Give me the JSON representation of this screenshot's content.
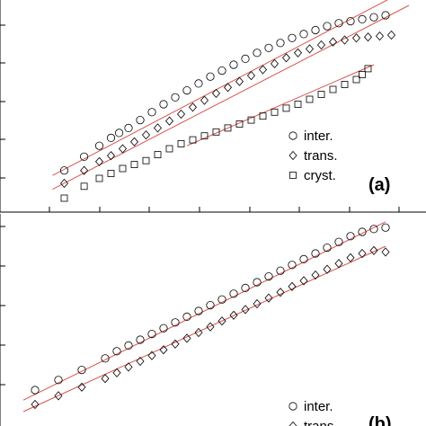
{
  "chart_data": [
    {
      "type": "scatter",
      "panel_label": "(a)",
      "legend_position": "lower-right",
      "series": [
        {
          "name": "inter.",
          "marker": "circle",
          "points": [
            [
              0.55,
              0.33
            ],
            [
              0.72,
              0.47
            ],
            [
              0.85,
              0.58
            ],
            [
              0.95,
              0.66
            ],
            [
              1.02,
              0.71
            ],
            [
              1.1,
              0.76
            ],
            [
              1.2,
              0.84
            ],
            [
              1.3,
              0.92
            ],
            [
              1.4,
              1.0
            ],
            [
              1.5,
              1.07
            ],
            [
              1.6,
              1.14
            ],
            [
              1.7,
              1.21
            ],
            [
              1.8,
              1.28
            ],
            [
              1.9,
              1.34
            ],
            [
              2.0,
              1.4
            ],
            [
              2.1,
              1.46
            ],
            [
              2.2,
              1.52
            ],
            [
              2.3,
              1.57
            ],
            [
              2.4,
              1.62
            ],
            [
              2.5,
              1.67
            ],
            [
              2.6,
              1.71
            ],
            [
              2.7,
              1.75
            ],
            [
              2.8,
              1.79
            ],
            [
              2.9,
              1.82
            ],
            [
              3.0,
              1.84
            ],
            [
              3.1,
              1.86
            ],
            [
              3.2,
              1.88
            ],
            [
              3.3,
              1.9
            ]
          ],
          "fit": [
            [
              0.45,
              0.28
            ],
            [
              3.5,
              2.17
            ]
          ]
        },
        {
          "name": "trans.",
          "marker": "diamond",
          "points": [
            [
              0.55,
              0.2
            ],
            [
              0.72,
              0.33
            ],
            [
              0.85,
              0.42
            ],
            [
              0.95,
              0.48
            ],
            [
              1.05,
              0.55
            ],
            [
              1.15,
              0.62
            ],
            [
              1.25,
              0.69
            ],
            [
              1.35,
              0.76
            ],
            [
              1.45,
              0.83
            ],
            [
              1.55,
              0.9
            ],
            [
              1.65,
              0.97
            ],
            [
              1.75,
              1.04
            ],
            [
              1.85,
              1.11
            ],
            [
              1.95,
              1.17
            ],
            [
              2.05,
              1.23
            ],
            [
              2.15,
              1.29
            ],
            [
              2.25,
              1.35
            ],
            [
              2.35,
              1.41
            ],
            [
              2.45,
              1.47
            ],
            [
              2.55,
              1.52
            ],
            [
              2.65,
              1.56
            ],
            [
              2.75,
              1.6
            ],
            [
              2.85,
              1.63
            ],
            [
              2.95,
              1.65
            ],
            [
              3.05,
              1.67
            ],
            [
              3.15,
              1.68
            ],
            [
              3.25,
              1.69
            ],
            [
              3.35,
              1.7
            ]
          ],
          "fit": [
            [
              0.45,
              0.14
            ],
            [
              3.5,
              2.0
            ]
          ]
        },
        {
          "name": "cryst.",
          "marker": "square",
          "points": [
            [
              0.55,
              0.05
            ],
            [
              0.72,
              0.17
            ],
            [
              0.85,
              0.25
            ],
            [
              0.95,
              0.3
            ],
            [
              1.05,
              0.35
            ],
            [
              1.15,
              0.39
            ],
            [
              1.25,
              0.43
            ],
            [
              1.35,
              0.49
            ],
            [
              1.45,
              0.55
            ],
            [
              1.55,
              0.6
            ],
            [
              1.65,
              0.64
            ],
            [
              1.75,
              0.68
            ],
            [
              1.85,
              0.72
            ],
            [
              1.95,
              0.76
            ],
            [
              2.05,
              0.8
            ],
            [
              2.15,
              0.84
            ],
            [
              2.25,
              0.88
            ],
            [
              2.35,
              0.92
            ],
            [
              2.45,
              0.96
            ],
            [
              2.55,
              1.0
            ],
            [
              2.65,
              1.05
            ],
            [
              2.75,
              1.1
            ],
            [
              2.85,
              1.15
            ],
            [
              2.95,
              1.2
            ],
            [
              3.05,
              1.25
            ],
            [
              3.1,
              1.3
            ],
            [
              3.15,
              1.36
            ]
          ],
          "fit": [
            [
              1.6,
              0.58
            ],
            [
              3.2,
              1.4
            ]
          ]
        }
      ]
    },
    {
      "type": "scatter",
      "panel_label": "(b)",
      "legend_position": "lower-right",
      "series": [
        {
          "name": "inter.",
          "marker": "circle",
          "points": [
            [
              0.3,
              0.25
            ],
            [
              0.5,
              0.32
            ],
            [
              0.7,
              0.39
            ],
            [
              0.9,
              0.47
            ],
            [
              1.0,
              0.52
            ],
            [
              1.1,
              0.56
            ],
            [
              1.2,
              0.6
            ],
            [
              1.3,
              0.64
            ],
            [
              1.4,
              0.68
            ],
            [
              1.5,
              0.72
            ],
            [
              1.6,
              0.76
            ],
            [
              1.7,
              0.8
            ],
            [
              1.8,
              0.84
            ],
            [
              1.9,
              0.88
            ],
            [
              2.0,
              0.92
            ],
            [
              2.1,
              0.96
            ],
            [
              2.2,
              1.0
            ],
            [
              2.3,
              1.04
            ],
            [
              2.4,
              1.08
            ],
            [
              2.5,
              1.12
            ],
            [
              2.6,
              1.16
            ],
            [
              2.7,
              1.2
            ],
            [
              2.8,
              1.24
            ],
            [
              2.9,
              1.28
            ],
            [
              3.0,
              1.32
            ],
            [
              3.1,
              1.35
            ],
            [
              3.2,
              1.37
            ],
            [
              3.3,
              1.38
            ]
          ],
          "fit": [
            [
              0.2,
              0.18
            ],
            [
              3.3,
              1.42
            ]
          ]
        },
        {
          "name": "trans.",
          "marker": "diamond",
          "points": [
            [
              0.3,
              0.15
            ],
            [
              0.5,
              0.21
            ],
            [
              0.7,
              0.27
            ],
            [
              0.9,
              0.33
            ],
            [
              1.0,
              0.37
            ],
            [
              1.1,
              0.41
            ],
            [
              1.2,
              0.45
            ],
            [
              1.3,
              0.49
            ],
            [
              1.4,
              0.53
            ],
            [
              1.5,
              0.57
            ],
            [
              1.6,
              0.61
            ],
            [
              1.7,
              0.65
            ],
            [
              1.8,
              0.69
            ],
            [
              1.9,
              0.73
            ],
            [
              2.0,
              0.77
            ],
            [
              2.1,
              0.81
            ],
            [
              2.2,
              0.85
            ],
            [
              2.3,
              0.89
            ],
            [
              2.4,
              0.93
            ],
            [
              2.5,
              0.97
            ],
            [
              2.6,
              1.01
            ],
            [
              2.7,
              1.05
            ],
            [
              2.8,
              1.09
            ],
            [
              2.9,
              1.13
            ],
            [
              3.0,
              1.17
            ],
            [
              3.1,
              1.2
            ],
            [
              3.2,
              1.22
            ],
            [
              3.3,
              1.21
            ]
          ],
          "fit": [
            [
              0.2,
              0.1
            ],
            [
              3.3,
              1.25
            ]
          ]
        }
      ]
    }
  ]
}
